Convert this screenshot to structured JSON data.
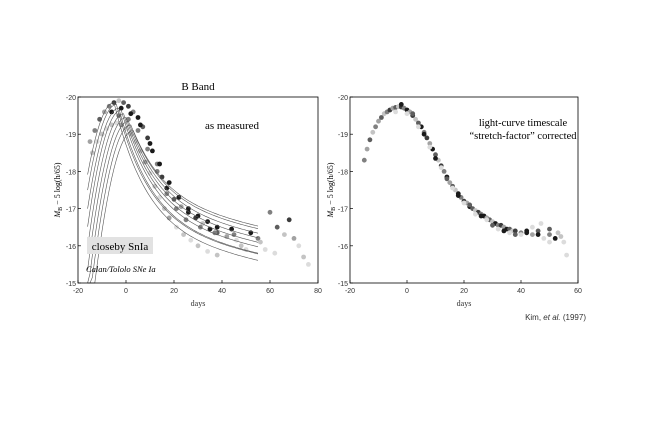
{
  "colors": {
    "background": "#ffffff",
    "axis": "#000000",
    "tick_text": "#333333",
    "label_box": "#e2e2e2",
    "point_shades": [
      "#1a1a1a",
      "#3c3c3c",
      "#5e5e5e",
      "#808080",
      "#a2a2a2",
      "#c4c4c4",
      "#dcdcdc"
    ]
  },
  "chart_data": [
    {
      "type": "scatter",
      "title": "B Band",
      "xlabel": "days",
      "ylabel": "M_B − 5 log(h/65)",
      "ylabel_parts": {
        "m": "M",
        "sub": "B",
        "rest": " − 5 log(h/65)"
      },
      "xlim": [
        -20,
        80
      ],
      "ylim": [
        -15,
        -20
      ],
      "xticks": [
        -20,
        0,
        20,
        40,
        60,
        80
      ],
      "yticks": [
        -20,
        -19,
        -18,
        -17,
        -16,
        -15
      ],
      "annotations": {
        "corner": "as measured",
        "label_box": "closeby SnIa",
        "source": "Calan/Tololo SNe Ia"
      },
      "templates": [
        {
          "peak_day": -5,
          "peak_mag": -19.85,
          "rise": 1.6,
          "decline": 1.7
        },
        {
          "peak_day": -4,
          "peak_mag": -19.8,
          "rise": 1.6,
          "decline": 1.6
        },
        {
          "peak_day": -3,
          "peak_mag": -19.7,
          "rise": 1.6,
          "decline": 1.55
        },
        {
          "peak_day": -2,
          "peak_mag": -19.65,
          "rise": 1.6,
          "decline": 1.45
        },
        {
          "peak_day": -1,
          "peak_mag": -19.55,
          "rise": 1.6,
          "decline": 1.35
        },
        {
          "peak_day": 0,
          "peak_mag": -19.45,
          "rise": 1.6,
          "decline": 1.25
        },
        {
          "peak_day": 1,
          "peak_mag": -19.35,
          "rise": 1.6,
          "decline": 1.15
        },
        {
          "peak_day": 2,
          "peak_mag": -19.25,
          "rise": 1.6,
          "decline": 1.05
        },
        {
          "peak_day": 3,
          "peak_mag": -19.1,
          "rise": 1.6,
          "decline": 0.95
        }
      ],
      "points": [
        [
          -15,
          -18.8,
          4
        ],
        [
          -13,
          -19.1,
          3
        ],
        [
          -11,
          -19.4,
          2
        ],
        [
          -9,
          -19.6,
          4
        ],
        [
          -7,
          -19.75,
          3
        ],
        [
          -5,
          -19.85,
          1
        ],
        [
          -3,
          -19.9,
          5
        ],
        [
          -1,
          -19.85,
          2
        ],
        [
          1,
          -19.75,
          1
        ],
        [
          3,
          -19.6,
          3
        ],
        [
          5,
          -19.45,
          0
        ],
        [
          7,
          -19.2,
          2
        ],
        [
          9,
          -18.9,
          1
        ],
        [
          11,
          -18.55,
          0
        ],
        [
          13,
          -18.2,
          3
        ],
        [
          15,
          -17.85,
          1
        ],
        [
          17,
          -17.55,
          0
        ],
        [
          20,
          -17.25,
          2
        ],
        [
          23,
          -17.05,
          4
        ],
        [
          26,
          -16.9,
          0
        ],
        [
          29,
          -16.75,
          1
        ],
        [
          32,
          -16.6,
          5
        ],
        [
          35,
          -16.45,
          0
        ],
        [
          38,
          -16.35,
          2
        ],
        [
          42,
          -16.25,
          4
        ],
        [
          46,
          -16.15,
          6
        ],
        [
          -14,
          -18.5,
          5
        ],
        [
          -12,
          -18.8,
          6
        ],
        [
          -10,
          -19.0,
          5
        ],
        [
          -8,
          -19.15,
          6
        ],
        [
          -6,
          -19.25,
          5
        ],
        [
          -4,
          -19.3,
          6
        ],
        [
          -2,
          -19.25,
          4
        ],
        [
          0,
          -19.15,
          6
        ],
        [
          2,
          -19.0,
          5
        ],
        [
          4,
          -18.8,
          6
        ],
        [
          6,
          -18.55,
          5
        ],
        [
          8,
          -18.25,
          4
        ],
        [
          10,
          -17.95,
          6
        ],
        [
          12,
          -17.6,
          5
        ],
        [
          14,
          -17.3,
          6
        ],
        [
          16,
          -17.0,
          5
        ],
        [
          18,
          -16.75,
          4
        ],
        [
          21,
          -16.5,
          6
        ],
        [
          24,
          -16.3,
          5
        ],
        [
          27,
          -16.15,
          6
        ],
        [
          30,
          -16.0,
          5
        ],
        [
          34,
          -15.85,
          6
        ],
        [
          38,
          -15.75,
          5
        ],
        [
          -6,
          -19.6,
          0
        ],
        [
          -2,
          -19.7,
          0
        ],
        [
          2,
          -19.55,
          0
        ],
        [
          6,
          -19.25,
          0
        ],
        [
          10,
          -18.75,
          0
        ],
        [
          14,
          -18.2,
          0
        ],
        [
          18,
          -17.7,
          0
        ],
        [
          22,
          -17.3,
          0
        ],
        [
          26,
          -17.0,
          0
        ],
        [
          30,
          -16.8,
          0
        ],
        [
          34,
          -16.65,
          0
        ],
        [
          38,
          -16.5,
          0
        ],
        [
          44,
          -16.45,
          0
        ],
        [
          52,
          -16.35,
          0
        ],
        [
          -3,
          -19.5,
          3
        ],
        [
          1,
          -19.4,
          3
        ],
        [
          5,
          -19.1,
          3
        ],
        [
          9,
          -18.6,
          3
        ],
        [
          13,
          -18.0,
          3
        ],
        [
          17,
          -17.4,
          3
        ],
        [
          21,
          -17.0,
          3
        ],
        [
          25,
          -16.7,
          3
        ],
        [
          31,
          -16.5,
          3
        ],
        [
          37,
          -16.35,
          3
        ],
        [
          45,
          -16.3,
          3
        ],
        [
          55,
          -16.2,
          3
        ],
        [
          60,
          -16.9,
          3
        ],
        [
          63,
          -16.5,
          2
        ],
        [
          66,
          -16.3,
          5
        ],
        [
          68,
          -16.7,
          1
        ],
        [
          70,
          -16.2,
          4
        ],
        [
          72,
          -16.0,
          6
        ],
        [
          74,
          -15.7,
          5
        ],
        [
          76,
          -15.5,
          6
        ],
        [
          58,
          -15.9,
          6
        ],
        [
          56,
          -16.1,
          5
        ],
        [
          62,
          -15.8,
          6
        ],
        [
          48,
          -16.0,
          5
        ],
        [
          50,
          -15.9,
          6
        ]
      ]
    },
    {
      "type": "scatter",
      "title": "",
      "xlabel": "days",
      "ylabel": "M_B − 5 log(h/65)",
      "ylabel_parts": {
        "m": "M",
        "sub": "B",
        "rest": " − 5 log(h/65)"
      },
      "xlim": [
        -20,
        60
      ],
      "ylim": [
        -15,
        -20
      ],
      "xticks": [
        -20,
        0,
        20,
        40,
        60
      ],
      "yticks": [
        -20,
        -19,
        -18,
        -17,
        -16,
        -15
      ],
      "annotations": {
        "corner_line1": "light-curve timescale",
        "corner_line2": "“stretch-factor” corrected",
        "credit_name": "Kim, ",
        "credit_etal": "et al.",
        "credit_year": " (1997)"
      },
      "points": [
        [
          -15,
          -18.3,
          3
        ],
        [
          -14,
          -18.6,
          4
        ],
        [
          -13,
          -18.85,
          2
        ],
        [
          -12,
          -19.05,
          5
        ],
        [
          -11,
          -19.2,
          3
        ],
        [
          -10,
          -19.35,
          4
        ],
        [
          -9,
          -19.45,
          2
        ],
        [
          -8,
          -19.55,
          5
        ],
        [
          -7,
          -19.6,
          3
        ],
        [
          -6,
          -19.65,
          1
        ],
        [
          -5,
          -19.7,
          4
        ],
        [
          -4,
          -19.72,
          2
        ],
        [
          -3,
          -19.74,
          5
        ],
        [
          -2,
          -19.73,
          1
        ],
        [
          -1,
          -19.7,
          3
        ],
        [
          0,
          -19.65,
          0
        ],
        [
          1,
          -19.6,
          4
        ],
        [
          2,
          -19.5,
          1
        ],
        [
          3,
          -19.4,
          5
        ],
        [
          4,
          -19.3,
          2
        ],
        [
          5,
          -19.2,
          0
        ],
        [
          6,
          -19.05,
          3
        ],
        [
          7,
          -18.9,
          1
        ],
        [
          8,
          -18.75,
          4
        ],
        [
          9,
          -18.6,
          0
        ],
        [
          10,
          -18.45,
          2
        ],
        [
          11,
          -18.3,
          5
        ],
        [
          12,
          -18.15,
          1
        ],
        [
          13,
          -18.0,
          3
        ],
        [
          14,
          -17.85,
          0
        ],
        [
          15,
          -17.7,
          4
        ],
        [
          16,
          -17.6,
          2
        ],
        [
          17,
          -17.5,
          5
        ],
        [
          18,
          -17.4,
          0
        ],
        [
          19,
          -17.3,
          3
        ],
        [
          20,
          -17.2,
          1
        ],
        [
          21,
          -17.15,
          4
        ],
        [
          22,
          -17.05,
          0
        ],
        [
          23,
          -17.0,
          2
        ],
        [
          24,
          -16.95,
          5
        ],
        [
          25,
          -16.9,
          1
        ],
        [
          26,
          -16.85,
          3
        ],
        [
          27,
          -16.8,
          0
        ],
        [
          28,
          -16.75,
          4
        ],
        [
          29,
          -16.7,
          2
        ],
        [
          30,
          -16.65,
          5
        ],
        [
          31,
          -16.6,
          0
        ],
        [
          32,
          -16.55,
          3
        ],
        [
          33,
          -16.55,
          1
        ],
        [
          34,
          -16.5,
          4
        ],
        [
          35,
          -16.45,
          0
        ],
        [
          36,
          -16.45,
          2
        ],
        [
          37,
          -16.4,
          5
        ],
        [
          38,
          -16.4,
          1
        ],
        [
          40,
          -16.35,
          3
        ],
        [
          42,
          -16.4,
          0
        ],
        [
          44,
          -16.3,
          4
        ],
        [
          46,
          -16.4,
          2
        ],
        [
          48,
          -16.2,
          6
        ],
        [
          50,
          -16.3,
          3
        ],
        [
          52,
          -16.2,
          0
        ],
        [
          54,
          -16.25,
          5
        ],
        [
          55,
          -16.1,
          6
        ],
        [
          56,
          -15.75,
          6
        ],
        [
          -4,
          -19.6,
          6
        ],
        [
          0,
          -19.55,
          6
        ],
        [
          4,
          -19.2,
          6
        ],
        [
          8,
          -18.65,
          6
        ],
        [
          12,
          -18.1,
          6
        ],
        [
          16,
          -17.55,
          6
        ],
        [
          20,
          -17.15,
          6
        ],
        [
          24,
          -16.85,
          6
        ],
        [
          28,
          -16.7,
          6
        ],
        [
          32,
          -16.45,
          6
        ],
        [
          36,
          -16.35,
          6
        ],
        [
          40,
          -16.3,
          6
        ],
        [
          44,
          -16.5,
          6
        ],
        [
          47,
          -16.6,
          6
        ],
        [
          50,
          -16.1,
          6
        ],
        [
          -2,
          -19.8,
          0
        ],
        [
          2,
          -19.55,
          2
        ],
        [
          6,
          -19.0,
          0
        ],
        [
          10,
          -18.35,
          0
        ],
        [
          14,
          -17.8,
          2
        ],
        [
          18,
          -17.35,
          0
        ],
        [
          22,
          -17.1,
          2
        ],
        [
          26,
          -16.8,
          0
        ],
        [
          30,
          -16.55,
          2
        ],
        [
          34,
          -16.4,
          0
        ],
        [
          38,
          -16.3,
          2
        ],
        [
          42,
          -16.35,
          0
        ],
        [
          46,
          -16.3,
          0
        ],
        [
          50,
          -16.45,
          2
        ],
        [
          53,
          -16.35,
          5
        ]
      ]
    }
  ]
}
